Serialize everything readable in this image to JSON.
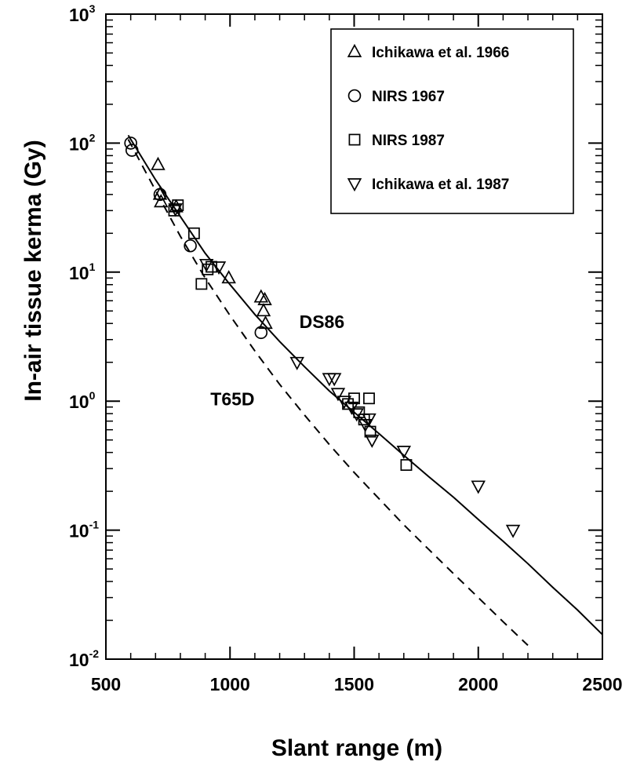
{
  "chart_data": {
    "type": "scatter",
    "xlabel": "Slant range (m)",
    "ylabel": "In-air tissue kerma (Gy)",
    "xlim": [
      500,
      2500
    ],
    "ylim": [
      0.01,
      1000
    ],
    "yscale": "log",
    "grid": false,
    "legend_position": "top-right",
    "x_ticks": [
      {
        "value": 500,
        "label": "500"
      },
      {
        "value": 1000,
        "label": "1000"
      },
      {
        "value": 1500,
        "label": "1500"
      },
      {
        "value": 2000,
        "label": "2000"
      },
      {
        "value": 2500,
        "label": "2500"
      }
    ],
    "y_ticks": [
      {
        "value": 1000,
        "base": "10",
        "exp": "3"
      },
      {
        "value": 100,
        "base": "10",
        "exp": "2"
      },
      {
        "value": 10,
        "base": "10",
        "exp": "1"
      },
      {
        "value": 1,
        "base": "10",
        "exp": "0"
      },
      {
        "value": 0.1,
        "base": "10",
        "exp": "-1"
      },
      {
        "value": 0.01,
        "base": "10",
        "exp": "-2"
      }
    ],
    "series": [
      {
        "name": "Ichikawa et al. 1966",
        "marker": "triangle-up",
        "points": [
          [
            710,
            68
          ],
          [
            718,
            40
          ],
          [
            722,
            35
          ],
          [
            783,
            32
          ],
          [
            995,
            9
          ],
          [
            1125,
            6.4
          ],
          [
            1135,
            5
          ],
          [
            1140,
            6.1
          ],
          [
            1143,
            4
          ]
        ]
      },
      {
        "name": "NIRS 1967",
        "marker": "circle",
        "points": [
          [
            600,
            100
          ],
          [
            605,
            88
          ],
          [
            718,
            40
          ],
          [
            840,
            16
          ],
          [
            1125,
            3.4
          ]
        ]
      },
      {
        "name": "NIRS 1987",
        "marker": "square",
        "points": [
          [
            775,
            30
          ],
          [
            790,
            33
          ],
          [
            855,
            20
          ],
          [
            885,
            8.1
          ],
          [
            910,
            10.5
          ],
          [
            925,
            11
          ],
          [
            1475,
            0.95
          ],
          [
            1500,
            1.05
          ],
          [
            1520,
            0.82
          ],
          [
            1540,
            0.72
          ],
          [
            1560,
            1.05
          ],
          [
            1565,
            0.58
          ],
          [
            1710,
            0.32
          ]
        ]
      },
      {
        "name": "Ichikawa et al. 1987",
        "marker": "triangle-down",
        "points": [
          [
            780,
            31
          ],
          [
            905,
            11.5
          ],
          [
            955,
            11
          ],
          [
            1270,
            2
          ],
          [
            1400,
            1.5
          ],
          [
            1420,
            1.5
          ],
          [
            1435,
            1.15
          ],
          [
            1460,
            1.0
          ],
          [
            1490,
            0.9
          ],
          [
            1510,
            0.8
          ],
          [
            1545,
            0.66
          ],
          [
            1560,
            0.73
          ],
          [
            1572,
            0.5
          ],
          [
            1700,
            0.41
          ],
          [
            2000,
            0.22
          ],
          [
            2140,
            0.1
          ]
        ]
      }
    ],
    "curves": [
      {
        "name": "DS86",
        "style": "solid",
        "points": [
          [
            590,
            115
          ],
          [
            700,
            52
          ],
          [
            800,
            27
          ],
          [
            900,
            14
          ],
          [
            1000,
            8
          ],
          [
            1100,
            4.7
          ],
          [
            1200,
            2.9
          ],
          [
            1300,
            1.85
          ],
          [
            1400,
            1.2
          ],
          [
            1500,
            0.82
          ],
          [
            1600,
            0.56
          ],
          [
            1700,
            0.38
          ],
          [
            1800,
            0.26
          ],
          [
            1900,
            0.18
          ],
          [
            2000,
            0.121
          ],
          [
            2100,
            0.082
          ],
          [
            2200,
            0.055
          ],
          [
            2300,
            0.036
          ],
          [
            2400,
            0.024
          ],
          [
            2500,
            0.0155
          ]
        ]
      },
      {
        "name": "T65D",
        "style": "dashed",
        "points": [
          [
            590,
            107
          ],
          [
            700,
            43
          ],
          [
            800,
            19
          ],
          [
            900,
            9
          ],
          [
            1000,
            4.6
          ],
          [
            1100,
            2.45
          ],
          [
            1200,
            1.35
          ],
          [
            1300,
            0.78
          ],
          [
            1400,
            0.46
          ],
          [
            1500,
            0.28
          ],
          [
            1600,
            0.175
          ],
          [
            1700,
            0.11
          ],
          [
            1800,
            0.071
          ],
          [
            1900,
            0.046
          ],
          [
            2000,
            0.03
          ],
          [
            2100,
            0.0195
          ],
          [
            2200,
            0.0128
          ]
        ]
      }
    ],
    "annotations": [
      {
        "text": "DS86",
        "x": 1370,
        "y": 3.7
      },
      {
        "text": "T65D",
        "x": 1010,
        "y": 0.93
      }
    ]
  }
}
